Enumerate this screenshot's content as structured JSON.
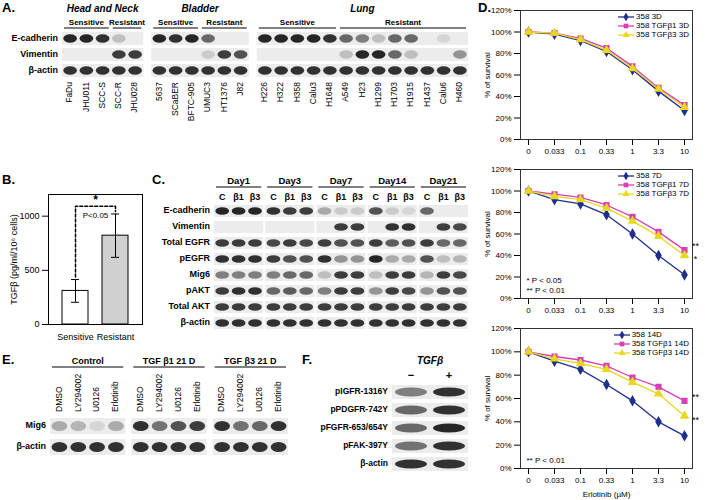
{
  "chart_data": [
    {
      "label": "B.",
      "type": "bar",
      "categories": [
        "Sensitive",
        "Resistant"
      ],
      "values": [
        310,
        820
      ],
      "errors": [
        105,
        200
      ],
      "colors": [
        "#ffffff",
        "#d0d0d0"
      ],
      "ylim": [
        0,
        1200
      ],
      "yticks": [
        0,
        500,
        1000
      ],
      "ylabel": "TGFβ (pg/ml/10⁶ cells)",
      "significance": {
        "marker": "*",
        "text": "P<0.05"
      }
    },
    {
      "label": "D.",
      "type": "line",
      "categories": [
        "0",
        "0.033",
        "0.1",
        "0.33",
        "1",
        "3.3",
        "10"
      ],
      "ylim": [
        0,
        120
      ],
      "yticks": [
        {
          "value": 0,
          "label": "0%"
        },
        {
          "value": 20,
          "label": "20%"
        },
        {
          "value": 40,
          "label": "40%"
        },
        {
          "value": 60,
          "label": "60%"
        },
        {
          "value": 80,
          "label": "80%"
        },
        {
          "value": 100,
          "label": "100%"
        },
        {
          "value": 120,
          "label": "120%"
        }
      ],
      "ylabel": "% of survival",
      "legend": "top-right",
      "series": [
        {
          "name": "358 3D",
          "color": "#1f2f8f",
          "marker": "diamond",
          "values": [
            100,
            98,
            92,
            82,
            65,
            45,
            27
          ]
        },
        {
          "name": "358 TGFβ1 3D",
          "color": "#d63fb5",
          "marker": "square",
          "values": [
            100,
            99,
            94,
            85,
            68,
            48,
            32
          ]
        },
        {
          "name": "358 TGFβ3 3D",
          "color": "#e8d820",
          "marker": "triangle",
          "values": [
            100,
            99,
            93,
            83,
            66,
            47,
            30
          ]
        }
      ]
    },
    {
      "type": "line",
      "categories": [
        "0",
        "0.033",
        "0.1",
        "0.33",
        "1",
        "3.3",
        "10"
      ],
      "ylim": [
        0,
        120
      ],
      "yticks": [
        {
          "value": 0,
          "label": "0%"
        },
        {
          "value": 20,
          "label": "20%"
        },
        {
          "value": 40,
          "label": "40%"
        },
        {
          "value": 60,
          "label": "60%"
        },
        {
          "value": 80,
          "label": "80%"
        },
        {
          "value": 100,
          "label": "100%"
        },
        {
          "value": 120,
          "label": "120%"
        }
      ],
      "ylabel": "% of survival",
      "legend": "top-right",
      "notes": [
        "* P < 0.05",
        "** P < 0.01"
      ],
      "series": [
        {
          "name": "358 7D",
          "color": "#1f2f8f",
          "marker": "diamond",
          "values": [
            100,
            92,
            88,
            78,
            60,
            40,
            22
          ]
        },
        {
          "name": "358 TGFβ1 7D",
          "color": "#d63fb5",
          "marker": "square",
          "values": [
            100,
            97,
            94,
            87,
            76,
            62,
            45
          ],
          "annotation": "**"
        },
        {
          "name": "358 TGFβ3 7D",
          "color": "#e8d820",
          "marker": "triangle",
          "values": [
            100,
            95,
            92,
            84,
            72,
            58,
            40
          ],
          "annotation": "*"
        }
      ]
    },
    {
      "type": "line",
      "categories": [
        "0",
        "0.033",
        "0.1",
        "0.33",
        "1",
        "3.3",
        "10"
      ],
      "ylim": [
        0,
        120
      ],
      "yticks": [
        {
          "value": 0,
          "label": "0%"
        },
        {
          "value": 20,
          "label": "20%"
        },
        {
          "value": 40,
          "label": "40%"
        },
        {
          "value": 60,
          "label": "60%"
        },
        {
          "value": 80,
          "label": "80%"
        },
        {
          "value": 100,
          "label": "100%"
        },
        {
          "value": 120,
          "label": "120%"
        }
      ],
      "ylabel": "% of survival",
      "xlabel": "Erlotinib (µM)",
      "legend": "top-right",
      "notes": [
        "** P < 0.01"
      ],
      "series": [
        {
          "name": "358 14D",
          "color": "#1f2f8f",
          "marker": "diamond",
          "values": [
            100,
            92,
            85,
            72,
            58,
            40,
            28
          ]
        },
        {
          "name": "358 TGFβ1 14D",
          "color": "#d63fb5",
          "marker": "square",
          "values": [
            100,
            96,
            93,
            88,
            78,
            70,
            58
          ],
          "annotation": "**"
        },
        {
          "name": "358 TGFβ3 14D",
          "color": "#e8d820",
          "marker": "triangle",
          "values": [
            100,
            94,
            90,
            85,
            74,
            64,
            45
          ],
          "annotation": "**"
        }
      ]
    }
  ],
  "blots": [
    {
      "label": "A.",
      "type": "blot",
      "groups": [
        {
          "name": "Head and Neck",
          "subgroups": [
            {
              "name": "Sensitive",
              "lanes": [
                "FaDu",
                "JHU011",
                "SCC-S"
              ]
            },
            {
              "name": "Resistant",
              "lanes": [
                "SCC-R",
                "JHU028"
              ]
            }
          ]
        },
        {
          "name": "Bladder",
          "subgroups": [
            {
              "name": "Sensitive",
              "lanes": [
                "5637",
                "SCaBER",
                "BFTC-905"
              ]
            },
            {
              "name": "Resistant",
              "lanes": [
                "UMUC3",
                "HT1376",
                "J82"
              ]
            }
          ]
        },
        {
          "name": "Lung",
          "subgroups": [
            {
              "name": "Sensitive",
              "lanes": [
                "H226",
                "H322",
                "H358",
                "Calu3",
                "H1648"
              ]
            },
            {
              "name": "Resistant",
              "lanes": [
                "A549",
                "H23",
                "H1299",
                "H1703",
                "H1915",
                "H1437",
                "Calu6",
                "H460"
              ]
            }
          ]
        }
      ],
      "rows": [
        {
          "name": "E-cadherin",
          "bands": [
            0.9,
            0.9,
            0.85,
            0.2,
            0,
            0.9,
            0.85,
            0.9,
            0.6,
            0,
            0,
            0.9,
            0.9,
            0.9,
            0.9,
            0.85,
            0.6,
            0.5,
            0.2,
            0.6,
            0.6,
            0,
            0.1,
            0
          ]
        },
        {
          "name": "Vimentin",
          "bands": [
            0,
            0,
            0,
            0.8,
            0.8,
            0,
            0,
            0,
            0.15,
            0.8,
            0.7,
            0,
            0,
            0,
            0,
            0,
            0.2,
            0.9,
            0.9,
            0.6,
            0.2,
            0,
            0,
            0.4
          ]
        },
        {
          "name": "β-actin",
          "bands": [
            0.85,
            0.85,
            0.85,
            0.85,
            0.85,
            0.85,
            0.85,
            0.85,
            0.85,
            0.85,
            0.85,
            0.85,
            0.85,
            0.85,
            0.85,
            0.85,
            0.85,
            0.85,
            0.85,
            0.85,
            0.85,
            0.85,
            0.85,
            0.85
          ]
        }
      ]
    },
    {
      "label": "C.",
      "type": "blot",
      "groups": [
        {
          "name": "Day1",
          "lanes": [
            "C",
            "β1",
            "β3"
          ]
        },
        {
          "name": "Day3",
          "lanes": [
            "C",
            "β1",
            "β3"
          ]
        },
        {
          "name": "Day7",
          "lanes": [
            "C",
            "β1",
            "β3"
          ]
        },
        {
          "name": "Day14",
          "lanes": [
            "C",
            "β1",
            "β3"
          ]
        },
        {
          "name": "Day21",
          "lanes": [
            "C",
            "β1",
            "β3"
          ]
        }
      ],
      "rows": [
        {
          "name": "E-cadherin",
          "bands": [
            0.9,
            0.9,
            0.9,
            0.85,
            0.8,
            0.8,
            0.3,
            0.15,
            0.15,
            0.7,
            0.15,
            0.1,
            0.6,
            0,
            0
          ]
        },
        {
          "name": "Vimentin",
          "bands": [
            0,
            0,
            0,
            0,
            0,
            0,
            0,
            0.8,
            0.8,
            0,
            0.85,
            0.85,
            0,
            0.8,
            0.75
          ]
        },
        {
          "name": "Total EGFR",
          "bands": [
            0.8,
            0.8,
            0.8,
            0.75,
            0.8,
            0.75,
            0.8,
            0.7,
            0.7,
            0.8,
            0.65,
            0.7,
            0.8,
            0.6,
            0.6
          ]
        },
        {
          "name": "pEGFR",
          "bands": [
            0.85,
            0.85,
            0.85,
            0.8,
            0.7,
            0.7,
            0.85,
            0.4,
            0.4,
            0.9,
            0.3,
            0.3,
            0.7,
            0.2,
            0.25
          ]
        },
        {
          "name": "Mig6",
          "bands": [
            0.5,
            0.5,
            0.5,
            0.5,
            0.6,
            0.6,
            0.2,
            0.8,
            0.8,
            0.2,
            0.8,
            0.8,
            0.25,
            0.8,
            0.75
          ]
        },
        {
          "name": "pAKT",
          "bands": [
            0.8,
            0.85,
            0.85,
            0.6,
            0.65,
            0.6,
            0.5,
            0.8,
            0.8,
            0.4,
            0.8,
            0.75,
            0.4,
            0.7,
            0.7
          ]
        },
        {
          "name": "Total AKT",
          "bands": [
            0.8,
            0.8,
            0.8,
            0.8,
            0.8,
            0.8,
            0.8,
            0.8,
            0.8,
            0.8,
            0.8,
            0.8,
            0.8,
            0.8,
            0.8
          ]
        },
        {
          "name": "β-actin",
          "bands": [
            0.85,
            0.85,
            0.85,
            0.85,
            0.85,
            0.85,
            0.85,
            0.85,
            0.85,
            0.85,
            0.85,
            0.85,
            0.85,
            0.85,
            0.85
          ]
        }
      ]
    },
    {
      "label": "E.",
      "type": "blot",
      "groups": [
        {
          "name": "Control",
          "lanes": [
            "DMSO",
            "LY294002",
            "U0126",
            "Erlotinib"
          ]
        },
        {
          "name": "TGF β1 21 D",
          "lanes": [
            "DMSO",
            "LY294002",
            "U0126",
            "Erlotinib"
          ]
        },
        {
          "name": "TGF β3 21 D",
          "lanes": [
            "DMSO",
            "LY294002",
            "U0126",
            "Erlotinib"
          ]
        }
      ],
      "rows": [
        {
          "name": "Mig6",
          "bands": [
            0.3,
            0.25,
            0.1,
            0.3,
            0.85,
            0.55,
            0.7,
            0.8,
            0.85,
            0.55,
            0.6,
            0.85
          ]
        },
        {
          "name": "β-actin",
          "bands": [
            0.85,
            0.85,
            0.85,
            0.85,
            0.85,
            0.85,
            0.85,
            0.85,
            0.85,
            0.85,
            0.85,
            0.85
          ]
        }
      ]
    },
    {
      "label": "F.",
      "type": "blot",
      "groups": [
        {
          "name": "TGFβ",
          "lanes": [
            "−",
            "+"
          ]
        }
      ],
      "rows": [
        {
          "name": "pIGFR-1316Y",
          "bands": [
            0.5,
            0.85
          ]
        },
        {
          "name": "pPDGFR-742Y",
          "bands": [
            0.6,
            0.85
          ]
        },
        {
          "name": "pFGFR-653/654Y",
          "bands": [
            0.6,
            0.9
          ]
        },
        {
          "name": "pFAK-397Y",
          "bands": [
            0.55,
            0.85
          ]
        },
        {
          "name": "β-actin",
          "bands": [
            0.85,
            0.85
          ]
        }
      ]
    }
  ]
}
